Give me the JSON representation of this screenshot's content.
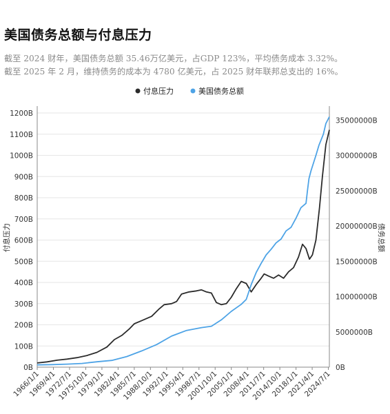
{
  "header": {
    "title": "美国债务总额与付息压力",
    "subtitle_line1": "截至 2024 财年，美国债务总额 35.46万亿美元，占GDP 123%，平均债务成本 3.32%。",
    "subtitle_line2": "截至 2025 年 2 月，维持债务的成本为 4780 亿美元，占 2025 财年联邦总支出的 16%。"
  },
  "chart_data": {
    "type": "line",
    "title": "",
    "legend_position": "top-center",
    "grid": "horizontal",
    "x_tick_labels": [
      "1966/1/1",
      "1969/4/1",
      "1972/7/1",
      "1975/10/1",
      "1979/1/1",
      "1982/4/1",
      "1985/7/1",
      "1988/10/1",
      "1992/1/1",
      "1995/4/1",
      "1998/7/1",
      "2001/10/1",
      "2005/1/1",
      "2008/4/1",
      "2011/7/1",
      "2014/10/1",
      "2018/1/1",
      "2021/4/1",
      "2024/7/1"
    ],
    "y_left": {
      "label": "付息压力",
      "ticks": [
        "0B",
        "100B",
        "200B",
        "300B",
        "400B",
        "500B",
        "600B",
        "700B",
        "800B",
        "900B",
        "1000B",
        "1100B",
        "1200B"
      ],
      "range": [
        0,
        1200
      ]
    },
    "y_right": {
      "label": "债务总额",
      "ticks": [
        "0B",
        "5000000B",
        "10000000B",
        "15000000B",
        "20000000B",
        "25000000B",
        "30000000B",
        "35000000B"
      ],
      "range": [
        0,
        36000000
      ]
    },
    "series": [
      {
        "name": "付息压力",
        "axis": "left",
        "color": "#2b2b2b",
        "points": [
          [
            1966.0,
            20
          ],
          [
            1968.0,
            25
          ],
          [
            1970.0,
            33
          ],
          [
            1972.0,
            38
          ],
          [
            1974.0,
            45
          ],
          [
            1976.0,
            55
          ],
          [
            1978.0,
            70
          ],
          [
            1980.0,
            95
          ],
          [
            1981.5,
            130
          ],
          [
            1983.0,
            150
          ],
          [
            1984.5,
            180
          ],
          [
            1985.5,
            205
          ],
          [
            1987.0,
            220
          ],
          [
            1989.0,
            240
          ],
          [
            1990.5,
            275
          ],
          [
            1991.5,
            295
          ],
          [
            1993.0,
            300
          ],
          [
            1994.0,
            310
          ],
          [
            1995.0,
            345
          ],
          [
            1996.5,
            355
          ],
          [
            1998.0,
            360
          ],
          [
            1999.0,
            365
          ],
          [
            2000.0,
            355
          ],
          [
            2001.0,
            350
          ],
          [
            2002.0,
            305
          ],
          [
            2003.0,
            295
          ],
          [
            2004.0,
            300
          ],
          [
            2005.0,
            330
          ],
          [
            2006.0,
            370
          ],
          [
            2007.0,
            405
          ],
          [
            2008.0,
            395
          ],
          [
            2009.0,
            355
          ],
          [
            2010.0,
            390
          ],
          [
            2011.0,
            420
          ],
          [
            2011.6,
            440
          ],
          [
            2012.5,
            430
          ],
          [
            2013.5,
            420
          ],
          [
            2014.5,
            435
          ],
          [
            2015.5,
            420
          ],
          [
            2016.5,
            450
          ],
          [
            2017.5,
            470
          ],
          [
            2018.5,
            520
          ],
          [
            2019.3,
            580
          ],
          [
            2020.0,
            560
          ],
          [
            2020.7,
            510
          ],
          [
            2021.3,
            530
          ],
          [
            2022.0,
            600
          ],
          [
            2022.7,
            750
          ],
          [
            2023.3,
            900
          ],
          [
            2024.0,
            1050
          ],
          [
            2024.7,
            1120
          ]
        ]
      },
      {
        "name": "美国债务总额",
        "axis": "right",
        "color": "#4da3e6",
        "points": [
          [
            1966.0,
            320000
          ],
          [
            1969.0,
            360000
          ],
          [
            1972.0,
            430000
          ],
          [
            1975.0,
            530000
          ],
          [
            1978.0,
            760000
          ],
          [
            1981.0,
            960000
          ],
          [
            1984.0,
            1500000
          ],
          [
            1987.0,
            2300000
          ],
          [
            1990.0,
            3200000
          ],
          [
            1993.0,
            4400000
          ],
          [
            1996.0,
            5200000
          ],
          [
            1999.0,
            5600000
          ],
          [
            2001.0,
            5800000
          ],
          [
            2003.0,
            6700000
          ],
          [
            2005.0,
            7900000
          ],
          [
            2007.0,
            8900000
          ],
          [
            2008.0,
            9600000
          ],
          [
            2009.0,
            11700000
          ],
          [
            2010.0,
            13400000
          ],
          [
            2011.0,
            14700000
          ],
          [
            2012.0,
            15900000
          ],
          [
            2013.0,
            16700000
          ],
          [
            2014.0,
            17600000
          ],
          [
            2015.0,
            18150000
          ],
          [
            2016.0,
            19300000
          ],
          [
            2017.0,
            19800000
          ],
          [
            2018.0,
            21100000
          ],
          [
            2019.0,
            22600000
          ],
          [
            2020.0,
            23200000
          ],
          [
            2020.3,
            25000000
          ],
          [
            2020.6,
            26700000
          ],
          [
            2021.0,
            27800000
          ],
          [
            2022.0,
            30000000
          ],
          [
            2022.6,
            31400000
          ],
          [
            2023.5,
            33000000
          ],
          [
            2024.0,
            34500000
          ],
          [
            2024.7,
            35460000
          ]
        ]
      }
    ]
  }
}
